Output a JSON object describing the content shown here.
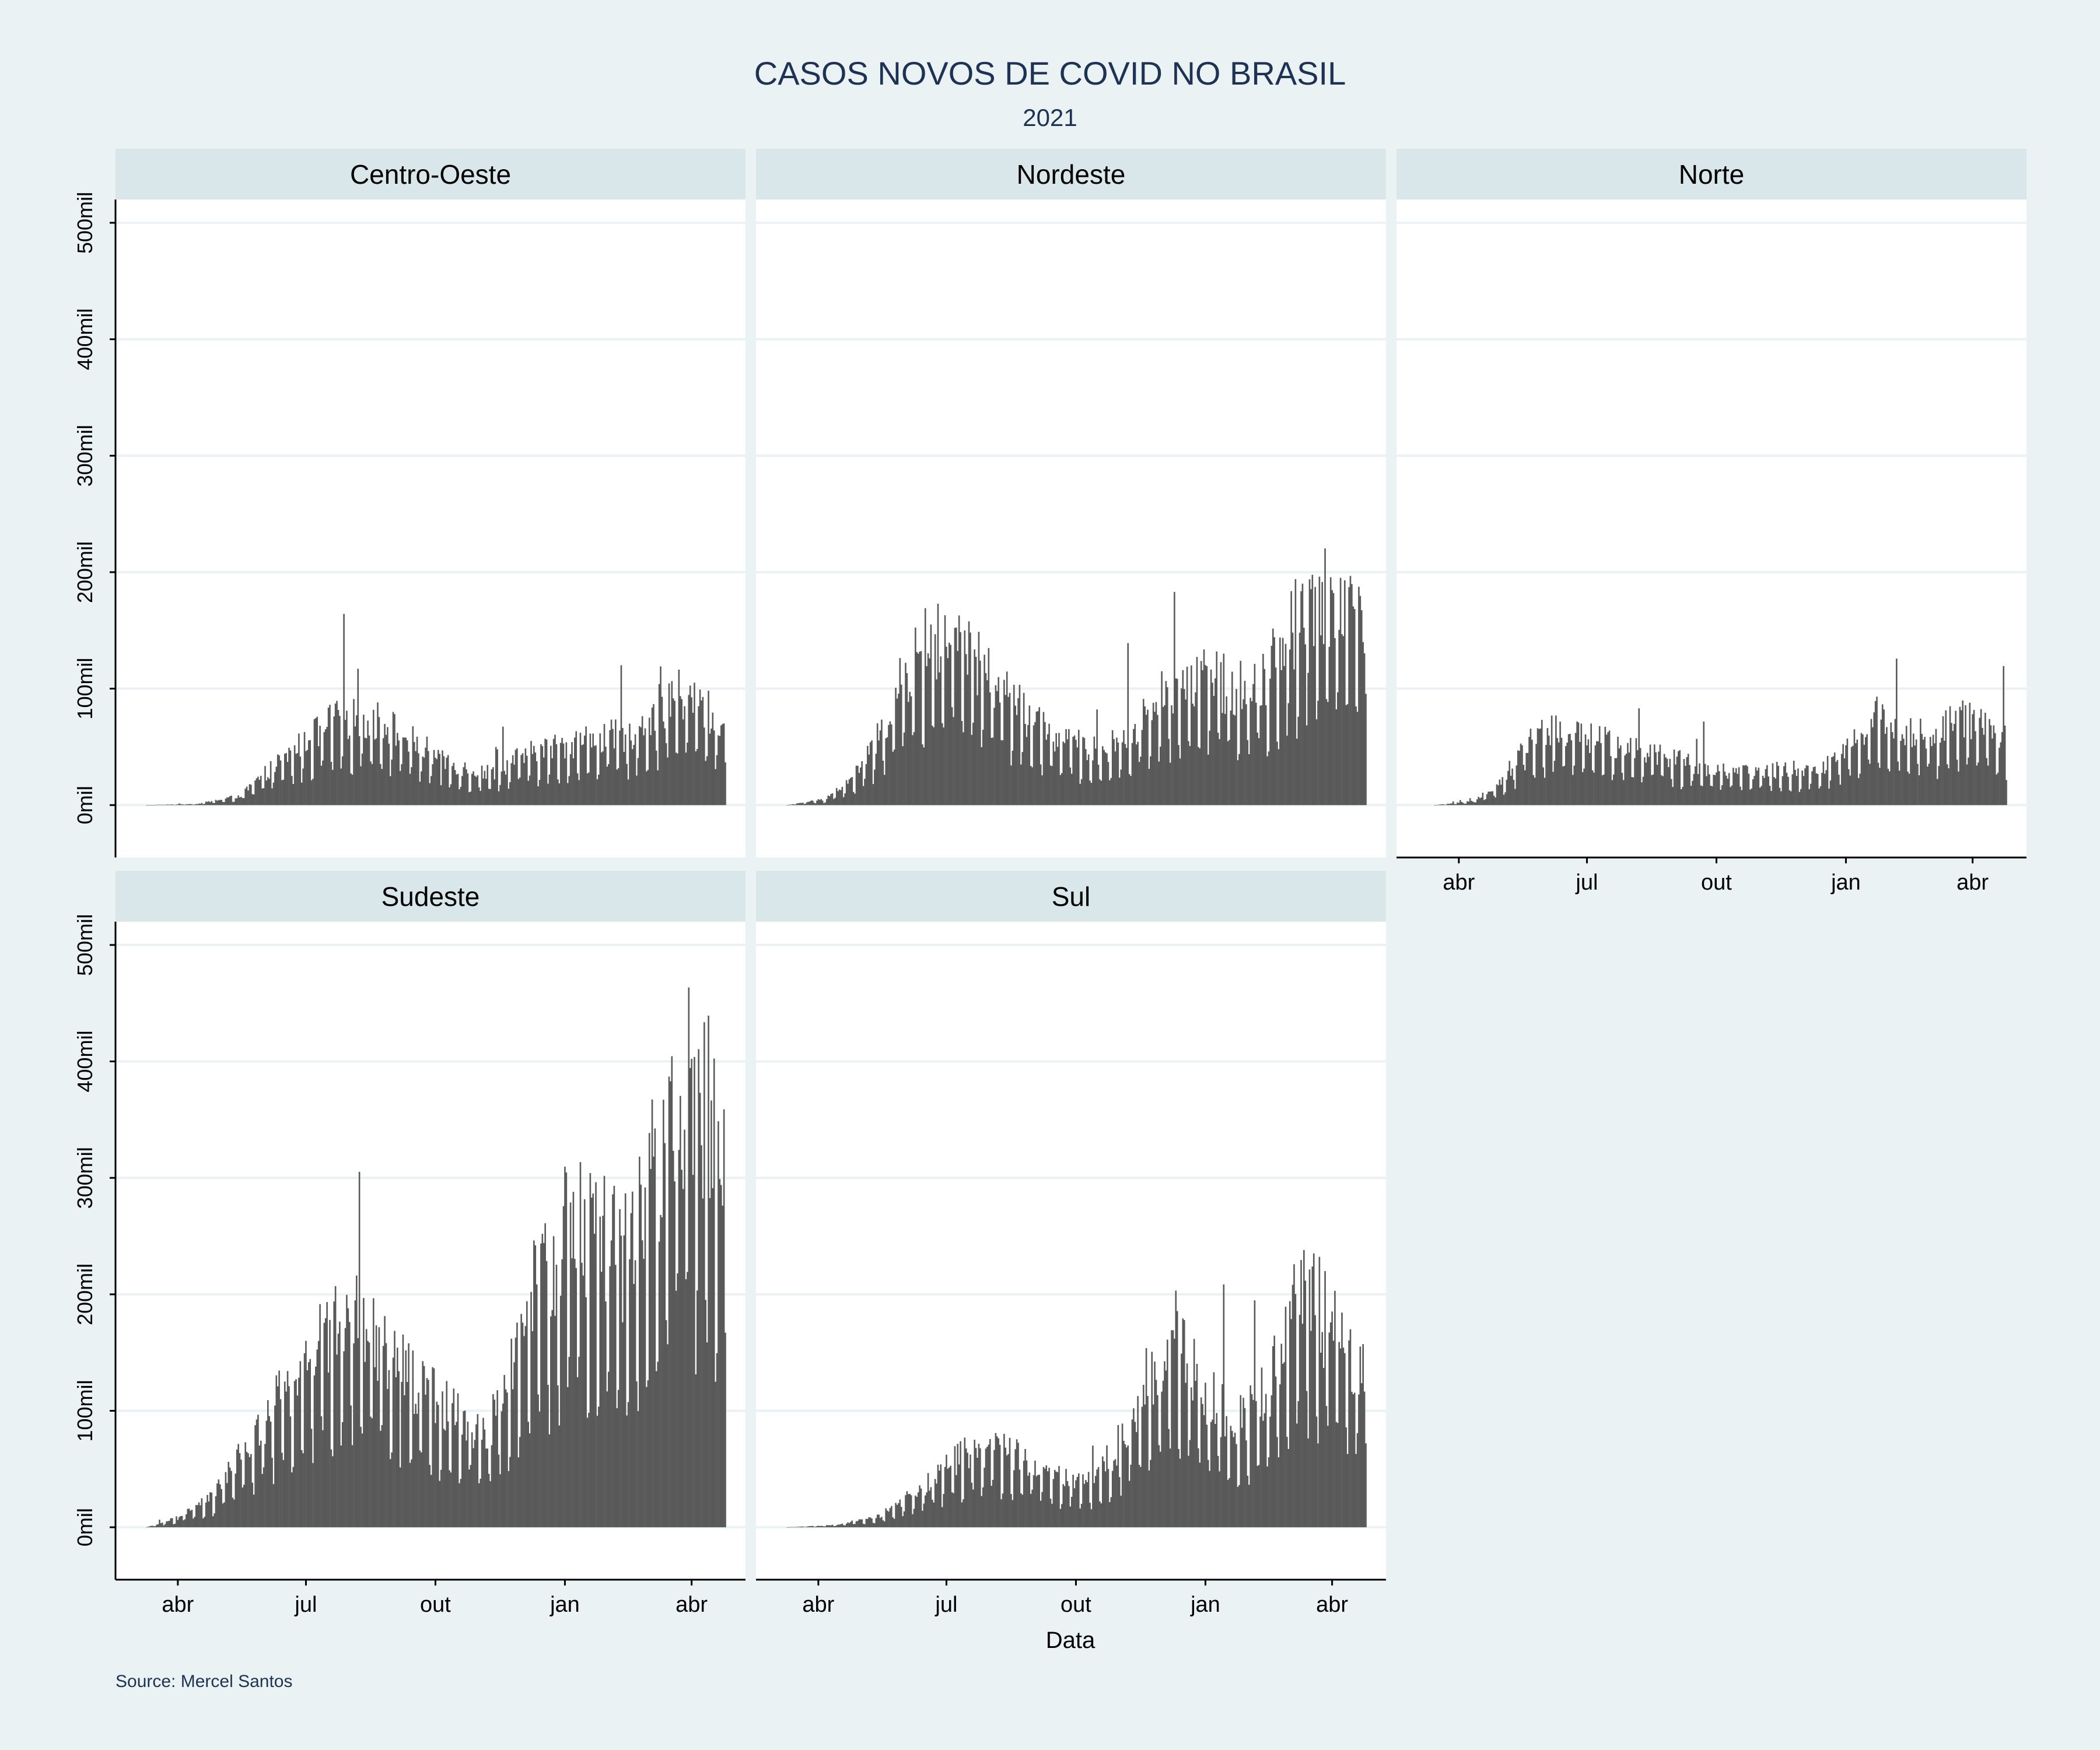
{
  "title": "CASOS NOVOS DE COVID NO BRASIL",
  "subtitle": "2021",
  "source": "Source: Mercel Santos",
  "chart_data": {
    "type": "bar",
    "xlabel": "Data",
    "ylabel": "",
    "ylim": [
      -45000,
      520000
    ],
    "y_ticks": [
      {
        "value": 0,
        "label": "0mil"
      },
      {
        "value": 100000,
        "label": "100mil"
      },
      {
        "value": 200000,
        "label": "200mil"
      },
      {
        "value": 300000,
        "label": "300mil"
      },
      {
        "value": 400000,
        "label": "400mil"
      },
      {
        "value": 500000,
        "label": "500mil"
      }
    ],
    "x_range": [
      "2020-02-25",
      "2021-05-01"
    ],
    "x_ticks": [
      {
        "date": "2020-04-01",
        "label": "abr"
      },
      {
        "date": "2020-07-01",
        "label": "jul"
      },
      {
        "date": "2020-10-01",
        "label": "out"
      },
      {
        "date": "2021-01-01",
        "label": "jan"
      },
      {
        "date": "2021-04-01",
        "label": "abr"
      }
    ],
    "grid": true,
    "bar_color": "#595959",
    "panels": [
      {
        "name": "Centro-Oeste",
        "series": [
          {
            "date": "2020-03-10",
            "value": 0
          },
          {
            "date": "2020-04-15",
            "value": 1000
          },
          {
            "date": "2020-05-15",
            "value": 8000
          },
          {
            "date": "2020-06-05",
            "value": 30000
          },
          {
            "date": "2020-06-20",
            "value": 45000
          },
          {
            "date": "2020-07-01",
            "value": 55000
          },
          {
            "date": "2020-07-20",
            "value": 72000
          },
          {
            "date": "2020-08-05",
            "value": 75000
          },
          {
            "date": "2020-08-25",
            "value": 72000
          },
          {
            "date": "2020-09-15",
            "value": 55000
          },
          {
            "date": "2020-10-05",
            "value": 40000
          },
          {
            "date": "2020-10-25",
            "value": 30000
          },
          {
            "date": "2020-11-10",
            "value": 28000
          },
          {
            "date": "2020-12-01",
            "value": 42000
          },
          {
            "date": "2021-01-01",
            "value": 52000
          },
          {
            "date": "2021-01-25",
            "value": 58000
          },
          {
            "date": "2021-02-15",
            "value": 60000
          },
          {
            "date": "2021-03-01",
            "value": 75000
          },
          {
            "date": "2021-03-20",
            "value": 95000
          },
          {
            "date": "2021-04-05",
            "value": 90000
          },
          {
            "date": "2021-04-25",
            "value": 65000
          }
        ]
      },
      {
        "name": "Nordeste",
        "series": [
          {
            "date": "2020-03-10",
            "value": 0
          },
          {
            "date": "2020-04-05",
            "value": 5000
          },
          {
            "date": "2020-04-25",
            "value": 22000
          },
          {
            "date": "2020-05-15",
            "value": 60000
          },
          {
            "date": "2020-06-01",
            "value": 110000
          },
          {
            "date": "2020-06-15",
            "value": 135000
          },
          {
            "date": "2020-07-01",
            "value": 145000
          },
          {
            "date": "2020-07-20",
            "value": 125000
          },
          {
            "date": "2020-08-10",
            "value": 100000
          },
          {
            "date": "2020-09-01",
            "value": 70000
          },
          {
            "date": "2020-09-25",
            "value": 55000
          },
          {
            "date": "2020-10-20",
            "value": 45000
          },
          {
            "date": "2020-11-15",
            "value": 70000
          },
          {
            "date": "2020-12-05",
            "value": 100000
          },
          {
            "date": "2021-01-01",
            "value": 110000
          },
          {
            "date": "2021-01-25",
            "value": 100000
          },
          {
            "date": "2021-02-15",
            "value": 115000
          },
          {
            "date": "2021-03-01",
            "value": 150000
          },
          {
            "date": "2021-03-20",
            "value": 175000
          },
          {
            "date": "2021-04-05",
            "value": 180000
          },
          {
            "date": "2021-04-25",
            "value": 170000
          }
        ]
      },
      {
        "name": "Norte",
        "series": [
          {
            "date": "2020-03-15",
            "value": 0
          },
          {
            "date": "2020-04-10",
            "value": 3000
          },
          {
            "date": "2020-05-01",
            "value": 20000
          },
          {
            "date": "2020-05-20",
            "value": 55000
          },
          {
            "date": "2020-06-05",
            "value": 65000
          },
          {
            "date": "2020-06-20",
            "value": 60000
          },
          {
            "date": "2020-07-15",
            "value": 55000
          },
          {
            "date": "2020-08-15",
            "value": 48000
          },
          {
            "date": "2020-09-15",
            "value": 35000
          },
          {
            "date": "2020-10-15",
            "value": 28000
          },
          {
            "date": "2020-11-15",
            "value": 30000
          },
          {
            "date": "2020-12-15",
            "value": 32000
          },
          {
            "date": "2021-01-10",
            "value": 60000
          },
          {
            "date": "2021-01-25",
            "value": 78000
          },
          {
            "date": "2021-02-15",
            "value": 62000
          },
          {
            "date": "2021-03-05",
            "value": 60000
          },
          {
            "date": "2021-03-25",
            "value": 75000
          },
          {
            "date": "2021-04-10",
            "value": 70000
          },
          {
            "date": "2021-04-25",
            "value": 55000
          }
        ]
      },
      {
        "name": "Sudeste",
        "series": [
          {
            "date": "2020-03-10",
            "value": 0
          },
          {
            "date": "2020-04-01",
            "value": 8000
          },
          {
            "date": "2020-04-25",
            "value": 25000
          },
          {
            "date": "2020-05-15",
            "value": 60000
          },
          {
            "date": "2020-06-01",
            "value": 90000
          },
          {
            "date": "2020-06-25",
            "value": 130000
          },
          {
            "date": "2020-07-15",
            "value": 170000
          },
          {
            "date": "2020-08-05",
            "value": 175000
          },
          {
            "date": "2020-08-25",
            "value": 150000
          },
          {
            "date": "2020-09-20",
            "value": 120000
          },
          {
            "date": "2020-10-15",
            "value": 100000
          },
          {
            "date": "2020-11-05",
            "value": 80000
          },
          {
            "date": "2020-11-20",
            "value": 120000
          },
          {
            "date": "2020-12-10",
            "value": 200000
          },
          {
            "date": "2021-01-05",
            "value": 260000
          },
          {
            "date": "2021-01-25",
            "value": 250000
          },
          {
            "date": "2021-02-15",
            "value": 230000
          },
          {
            "date": "2021-03-05",
            "value": 300000
          },
          {
            "date": "2021-03-25",
            "value": 380000
          },
          {
            "date": "2021-04-10",
            "value": 370000
          },
          {
            "date": "2021-04-25",
            "value": 300000
          }
        ]
      },
      {
        "name": "Sul",
        "series": [
          {
            "date": "2020-03-10",
            "value": 0
          },
          {
            "date": "2020-04-15",
            "value": 2000
          },
          {
            "date": "2020-05-15",
            "value": 10000
          },
          {
            "date": "2020-06-15",
            "value": 35000
          },
          {
            "date": "2020-07-10",
            "value": 60000
          },
          {
            "date": "2020-08-01",
            "value": 70000
          },
          {
            "date": "2020-08-25",
            "value": 60000
          },
          {
            "date": "2020-09-20",
            "value": 45000
          },
          {
            "date": "2020-10-15",
            "value": 42000
          },
          {
            "date": "2020-11-05",
            "value": 80000
          },
          {
            "date": "2020-11-25",
            "value": 140000
          },
          {
            "date": "2020-12-15",
            "value": 150000
          },
          {
            "date": "2021-01-05",
            "value": 110000
          },
          {
            "date": "2021-01-25",
            "value": 90000
          },
          {
            "date": "2021-02-15",
            "value": 120000
          },
          {
            "date": "2021-03-01",
            "value": 180000
          },
          {
            "date": "2021-03-15",
            "value": 200000
          },
          {
            "date": "2021-04-01",
            "value": 170000
          },
          {
            "date": "2021-04-25",
            "value": 130000
          }
        ]
      }
    ]
  }
}
